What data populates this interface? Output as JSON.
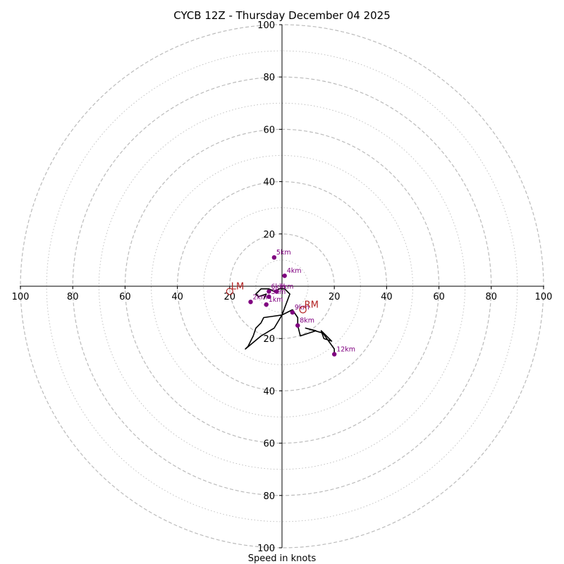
{
  "chart_data": {
    "type": "hodograph",
    "title": "CYCB 12Z - Thursday December 04 2025",
    "xlabel": "Speed in knots",
    "xlim": [
      -100,
      100
    ],
    "ylim": [
      -100,
      100
    ],
    "ring_major": [
      20,
      40,
      60,
      80,
      100
    ],
    "ring_minor": [
      10,
      30,
      50,
      70,
      90
    ],
    "axis_ticks": [
      20,
      40,
      60,
      80,
      100
    ],
    "tick_labels": {
      "left": [
        "100",
        "80",
        "60",
        "40",
        "20"
      ],
      "right": [
        "20",
        "40",
        "60",
        "80",
        "100"
      ],
      "top": [
        "20",
        "40",
        "60",
        "80",
        "100"
      ],
      "bottom": [
        "20",
        "40",
        "60",
        "80",
        "100"
      ]
    },
    "line_color": "#000000",
    "marker_color": "#800080",
    "motion_color": "#b22222",
    "grid_color": "#bbbbbb",
    "hodograph_uv": [
      [
        -7,
        -5
      ],
      [
        -6,
        -3
      ],
      [
        -9,
        -4
      ],
      [
        -10,
        -3
      ],
      [
        -8,
        -1
      ],
      [
        -5,
        -1
      ],
      [
        -3,
        -2
      ],
      [
        -1,
        -1
      ],
      [
        1,
        -1
      ],
      [
        3,
        -3
      ],
      [
        0,
        -11
      ],
      [
        -7,
        -12
      ],
      [
        -8,
        -14
      ],
      [
        -10,
        -16
      ],
      [
        -11,
        -19
      ],
      [
        -12,
        -21
      ],
      [
        -13,
        -23
      ],
      [
        -14,
        -24
      ],
      [
        -8,
        -19
      ],
      [
        -3,
        -16
      ],
      [
        0,
        -11
      ],
      [
        4,
        -9
      ],
      [
        6,
        -12
      ],
      [
        6,
        -15
      ],
      [
        7,
        -19
      ],
      [
        13,
        -17
      ],
      [
        9,
        -16
      ],
      [
        16,
        -18
      ],
      [
        15,
        -17
      ],
      [
        16,
        -20
      ],
      [
        19,
        -21
      ],
      [
        16,
        -18
      ],
      [
        15,
        -17
      ],
      [
        20,
        -24
      ],
      [
        20,
        -26
      ]
    ],
    "height_markers": [
      {
        "label": "1km",
        "u": -6,
        "v": -7
      },
      {
        "label": "2km",
        "u": -12,
        "v": -6
      },
      {
        "label": "3km",
        "u": -5,
        "v": -4
      },
      {
        "label": "4km",
        "u": 1,
        "v": 4
      },
      {
        "label": "5km",
        "u": -3,
        "v": 11
      },
      {
        "label": "6km",
        "u": -5,
        "v": -2
      },
      {
        "label": "7km",
        "u": -2,
        "v": -2
      },
      {
        "label": "8km",
        "u": 6,
        "v": -15
      },
      {
        "label": "9km",
        "u": 4,
        "v": -10
      },
      {
        "label": "12km",
        "u": 20,
        "v": -26
      }
    ],
    "storm_motion": [
      {
        "label": "LM",
        "u": -20,
        "v": -2
      },
      {
        "label": "RM",
        "u": 8,
        "v": -9
      }
    ]
  }
}
